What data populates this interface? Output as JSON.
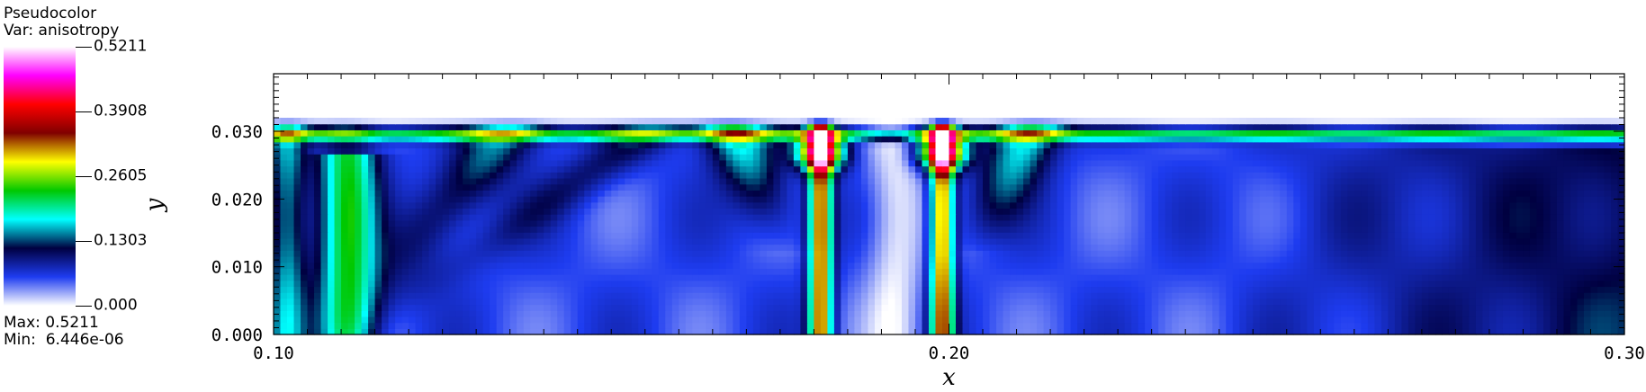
{
  "legend": {
    "title_line1": "Pseudocolor",
    "title_line2": "Var: anisotropy",
    "ticks": [
      "0.5211",
      "0.3908",
      "0.2605",
      "0.1303",
      "0.000"
    ],
    "max_label": "Max:",
    "max_value": "0.5211",
    "min_label": "Min:",
    "min_value": "6.446e-06",
    "colormap": [
      "#ffffff",
      "#1e3cf0",
      "#000040",
      "#00ffff",
      "#00c800",
      "#ffff00",
      "#800000",
      "#ff0000",
      "#ff00ff",
      "#ffffff"
    ]
  },
  "chart_data": {
    "type": "heatmap",
    "variable": "anisotropy",
    "xlabel": "x",
    "ylabel": "y",
    "xlim": [
      0.1,
      0.3
    ],
    "ylim": [
      0.0,
      0.0385
    ],
    "x_ticks": [
      0.1,
      0.2,
      0.3
    ],
    "x_tick_labels": [
      "0.10",
      "0.20",
      "0.30"
    ],
    "y_ticks": [
      0.0,
      0.01,
      0.02,
      0.03
    ],
    "y_tick_labels": [
      "0.000",
      "0.010",
      "0.020",
      "0.030"
    ],
    "value_range": [
      6.446e-06,
      0.5211
    ],
    "data_top_y": 0.032,
    "features": {
      "surface_band_y": 0.0295,
      "vertical_columns_x": [
        0.181,
        0.199
      ],
      "calm_column_x": 0.192,
      "fan_origins_x": [
        0.181,
        0.199
      ],
      "left_edge_band_x": [
        0.107,
        0.115
      ]
    }
  }
}
